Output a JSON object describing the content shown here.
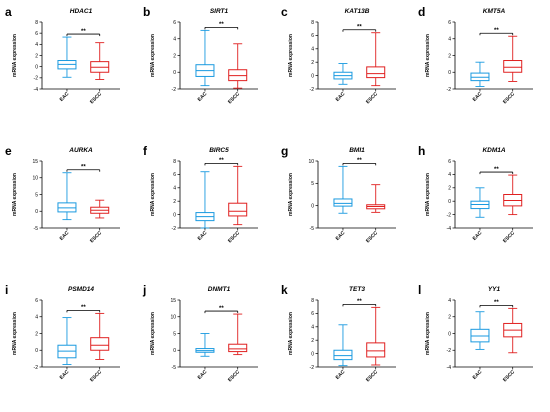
{
  "colors": {
    "EAC": "#1a9ae0",
    "ESCC": "#e02020",
    "axis": "#000000"
  },
  "chart_data": [
    {
      "type": "box",
      "panel": "a",
      "title": "HDAC1",
      "ylabel": "mRNA expression",
      "categories": [
        "EAC",
        "ESCC"
      ],
      "ylim": [
        -4,
        8
      ],
      "yticks": [
        -4,
        -2,
        0,
        2,
        4,
        6,
        8
      ],
      "significance": "**",
      "boxes": [
        {
          "min": -1.9,
          "q1": -0.4,
          "median": 0.4,
          "q3": 1.1,
          "max": 5.3
        },
        {
          "min": -2.3,
          "q1": -1.0,
          "median": -0.1,
          "q3": 0.9,
          "max": 4.3
        }
      ]
    },
    {
      "type": "box",
      "panel": "b",
      "title": "SIRT1",
      "ylabel": "mRNA expression",
      "categories": [
        "EAC",
        "ESCC"
      ],
      "ylim": [
        -2,
        6
      ],
      "yticks": [
        -2,
        0,
        2,
        4,
        6
      ],
      "significance": "**",
      "boxes": [
        {
          "min": -1.6,
          "q1": -0.5,
          "median": 0.2,
          "q3": 0.9,
          "max": 5.0
        },
        {
          "min": -1.9,
          "q1": -1.0,
          "median": -0.4,
          "q3": 0.3,
          "max": 3.4
        }
      ]
    },
    {
      "type": "box",
      "panel": "c",
      "title": "KAT13B",
      "ylabel": "mRNA expression",
      "categories": [
        "EAC",
        "ESCC"
      ],
      "ylim": [
        -2,
        8
      ],
      "yticks": [
        -2,
        0,
        2,
        4,
        6,
        8
      ],
      "significance": "**",
      "boxes": [
        {
          "min": -1.3,
          "q1": -0.5,
          "median": 0.0,
          "q3": 0.5,
          "max": 1.8
        },
        {
          "min": -1.5,
          "q1": -0.3,
          "median": 0.3,
          "q3": 1.3,
          "max": 6.4
        }
      ]
    },
    {
      "type": "box",
      "panel": "d",
      "title": "KMT5A",
      "ylabel": "mRNA expression",
      "categories": [
        "EAC",
        "ESCC"
      ],
      "ylim": [
        -2,
        6
      ],
      "yticks": [
        -2,
        0,
        2,
        4,
        6
      ],
      "significance": "**",
      "boxes": [
        {
          "min": -1.7,
          "q1": -1.0,
          "median": -0.6,
          "q3": -0.1,
          "max": 1.2
        },
        {
          "min": -1.1,
          "q1": 0.0,
          "median": 0.6,
          "q3": 1.4,
          "max": 4.3
        }
      ]
    },
    {
      "type": "box",
      "panel": "e",
      "title": "AURKA",
      "ylabel": "mRNA expression",
      "categories": [
        "EAC",
        "ESCC"
      ],
      "ylim": [
        -5,
        15
      ],
      "yticks": [
        -5,
        0,
        5,
        10,
        15
      ],
      "significance": "**",
      "boxes": [
        {
          "min": -2.5,
          "q1": -0.2,
          "median": 1.0,
          "q3": 2.5,
          "max": 11.5
        },
        {
          "min": -2.0,
          "q1": -0.6,
          "median": 0.3,
          "q3": 1.2,
          "max": 3.3
        }
      ]
    },
    {
      "type": "box",
      "panel": "f",
      "title": "BIRC5",
      "ylabel": "mRNA expression",
      "categories": [
        "EAC",
        "ESCC"
      ],
      "ylim": [
        -2,
        8
      ],
      "yticks": [
        -2,
        0,
        2,
        4,
        6,
        8
      ],
      "significance": "**",
      "boxes": [
        {
          "min": -2.0,
          "q1": -0.9,
          "median": -0.3,
          "q3": 0.3,
          "max": 6.4
        },
        {
          "min": -1.5,
          "q1": -0.2,
          "median": 0.5,
          "q3": 1.7,
          "max": 7.2
        }
      ]
    },
    {
      "type": "box",
      "panel": "g",
      "title": "BMI1",
      "ylabel": "mRNA expression",
      "categories": [
        "EAC",
        "ESCC"
      ],
      "ylim": [
        -5,
        10
      ],
      "yticks": [
        -5,
        0,
        5,
        10
      ],
      "significance": "**",
      "boxes": [
        {
          "min": -1.7,
          "q1": -0.1,
          "median": 0.5,
          "q3": 1.5,
          "max": 8.8
        },
        {
          "min": -1.5,
          "q1": -0.7,
          "median": -0.2,
          "q3": 0.2,
          "max": 4.7
        }
      ]
    },
    {
      "type": "box",
      "panel": "h",
      "title": "KDM1A",
      "ylabel": "mRNA expression",
      "categories": [
        "EAC",
        "ESCC"
      ],
      "ylim": [
        -4,
        6
      ],
      "yticks": [
        -4,
        -2,
        0,
        2,
        4,
        6
      ],
      "significance": "**",
      "boxes": [
        {
          "min": -2.4,
          "q1": -1.1,
          "median": -0.5,
          "q3": 0.0,
          "max": 2.0
        },
        {
          "min": -2.0,
          "q1": -0.7,
          "median": 0.1,
          "q3": 1.0,
          "max": 3.9
        }
      ]
    },
    {
      "type": "box",
      "panel": "i",
      "title": "PSMD14",
      "ylabel": "mRNA expression",
      "categories": [
        "EAC",
        "ESCC"
      ],
      "ylim": [
        -2,
        6
      ],
      "yticks": [
        -2,
        0,
        2,
        4,
        6
      ],
      "significance": "**",
      "boxes": [
        {
          "min": -1.7,
          "q1": -0.9,
          "median": -0.1,
          "q3": 0.6,
          "max": 3.9
        },
        {
          "min": -1.1,
          "q1": 0.0,
          "median": 0.6,
          "q3": 1.5,
          "max": 4.4
        }
      ]
    },
    {
      "type": "box",
      "panel": "j",
      "title": "DNMT1",
      "ylabel": "mRNA expression",
      "categories": [
        "EAC",
        "ESCC"
      ],
      "ylim": [
        -5,
        15
      ],
      "yticks": [
        -5,
        0,
        5,
        10,
        15
      ],
      "significance": "**",
      "boxes": [
        {
          "min": -1.8,
          "q1": -0.6,
          "median": -0.1,
          "q3": 0.5,
          "max": 5.0
        },
        {
          "min": -1.3,
          "q1": -0.4,
          "median": 0.4,
          "q3": 1.8,
          "max": 10.8
        }
      ]
    },
    {
      "type": "box",
      "panel": "k",
      "title": "TET3",
      "ylabel": "mRNA expression",
      "categories": [
        "EAC",
        "ESCC"
      ],
      "ylim": [
        -2,
        8
      ],
      "yticks": [
        -2,
        0,
        2,
        4,
        6,
        8
      ],
      "significance": "**",
      "boxes": [
        {
          "min": -1.8,
          "q1": -0.9,
          "median": -0.3,
          "q3": 0.5,
          "max": 4.3
        },
        {
          "min": -1.7,
          "q1": -0.5,
          "median": 0.4,
          "q3": 1.6,
          "max": 6.9
        }
      ]
    },
    {
      "type": "box",
      "panel": "l",
      "title": "YY1",
      "ylabel": "mRNA expression",
      "categories": [
        "EAC",
        "ESCC"
      ],
      "ylim": [
        -4,
        4
      ],
      "yticks": [
        -4,
        -2,
        0,
        2,
        4
      ],
      "significance": "**",
      "boxes": [
        {
          "min": -1.9,
          "q1": -1.0,
          "median": -0.3,
          "q3": 0.5,
          "max": 2.6
        },
        {
          "min": -2.3,
          "q1": -0.4,
          "median": 0.4,
          "q3": 1.2,
          "max": 3.0
        }
      ]
    }
  ]
}
